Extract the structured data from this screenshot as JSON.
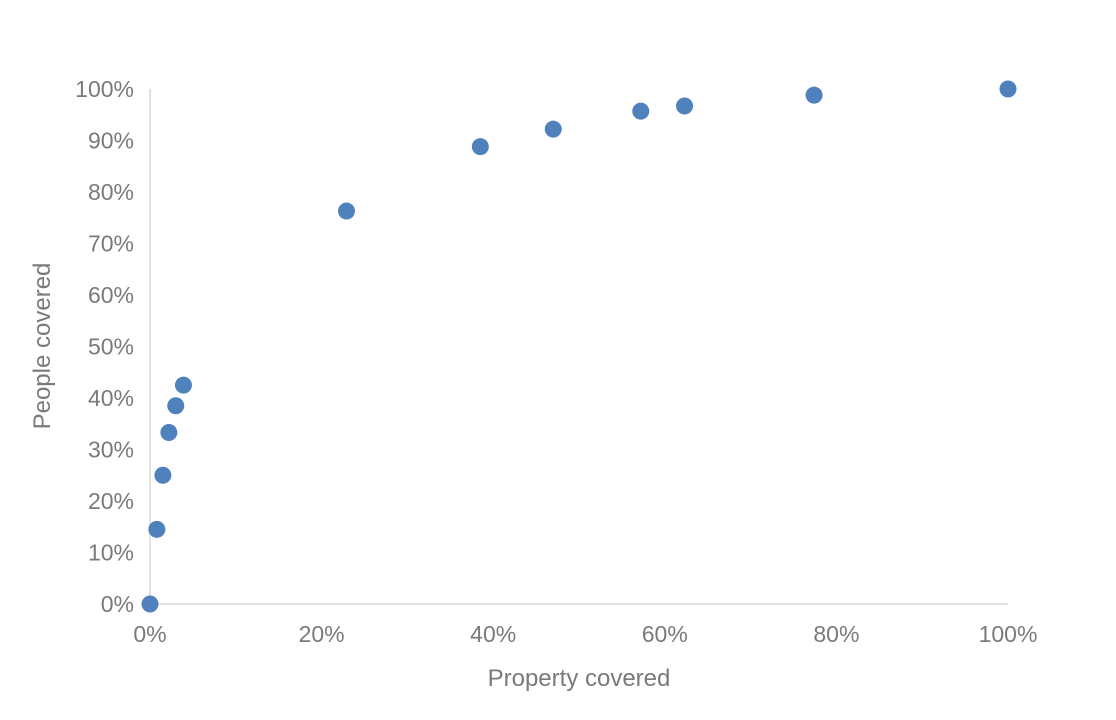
{
  "chart_data": {
    "type": "scatter",
    "xlabel": "Property covered",
    "ylabel": "People covered",
    "xlim": [
      0,
      1
    ],
    "ylim": [
      0,
      1
    ],
    "x_ticks": [
      {
        "value": 0.0,
        "label": "0%"
      },
      {
        "value": 0.2,
        "label": "20%"
      },
      {
        "value": 0.4,
        "label": "40%"
      },
      {
        "value": 0.6,
        "label": "60%"
      },
      {
        "value": 0.8,
        "label": "80%"
      },
      {
        "value": 1.0,
        "label": "100%"
      }
    ],
    "y_ticks": [
      {
        "value": 0.0,
        "label": "0%"
      },
      {
        "value": 0.1,
        "label": "10%"
      },
      {
        "value": 0.2,
        "label": "20%"
      },
      {
        "value": 0.3,
        "label": "30%"
      },
      {
        "value": 0.4,
        "label": "40%"
      },
      {
        "value": 0.5,
        "label": "50%"
      },
      {
        "value": 0.6,
        "label": "60%"
      },
      {
        "value": 0.7,
        "label": "70%"
      },
      {
        "value": 0.8,
        "label": "80%"
      },
      {
        "value": 0.9,
        "label": "90%"
      },
      {
        "value": 1.0,
        "label": "100%"
      }
    ],
    "grid": false,
    "legend": "none",
    "series": [
      {
        "color": "#4f81bd",
        "points": [
          {
            "x": 0.0,
            "y": 0.0
          },
          {
            "x": 0.008,
            "y": 0.145
          },
          {
            "x": 0.015,
            "y": 0.25
          },
          {
            "x": 0.022,
            "y": 0.333
          },
          {
            "x": 0.03,
            "y": 0.385
          },
          {
            "x": 0.039,
            "y": 0.425
          },
          {
            "x": 0.229,
            "y": 0.763
          },
          {
            "x": 0.385,
            "y": 0.888
          },
          {
            "x": 0.47,
            "y": 0.922
          },
          {
            "x": 0.572,
            "y": 0.957
          },
          {
            "x": 0.623,
            "y": 0.967
          },
          {
            "x": 0.774,
            "y": 0.988
          },
          {
            "x": 1.0,
            "y": 1.0
          }
        ]
      }
    ]
  }
}
